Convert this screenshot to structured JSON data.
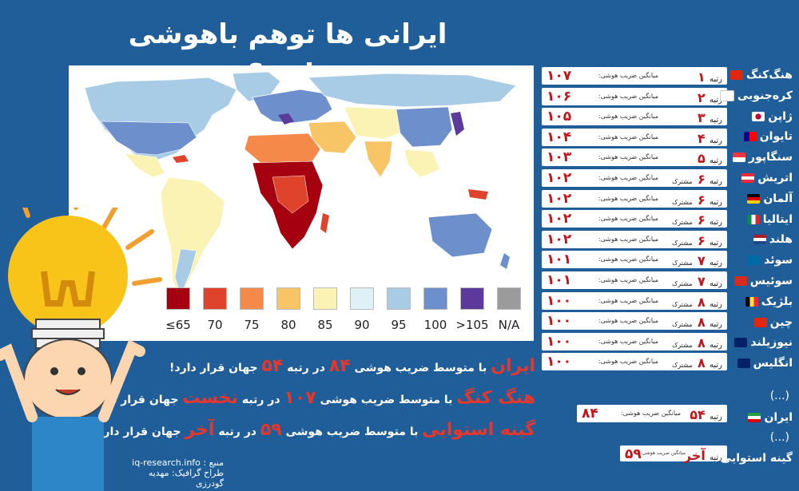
{
  "title": "ایرانی ها توهم باهوشی دارند؟",
  "legend": [
    {
      "label": "≤65",
      "color": "#a5000f"
    },
    {
      "label": "70",
      "color": "#e0432b"
    },
    {
      "label": "75",
      "color": "#f5894a"
    },
    {
      "label": "80",
      "color": "#f8c566"
    },
    {
      "label": "85",
      "color": "#fbf3b4"
    },
    {
      "label": "90",
      "color": "#dff0f6"
    },
    {
      "label": "95",
      "color": "#a8cce6"
    },
    {
      "label": "100",
      "color": "#6d8fcb"
    },
    {
      ">105": "",
      "label": ">105",
      "color": "#5b3a9c"
    },
    {
      "label": "N/A",
      "color": "#9b9b9b"
    }
  ],
  "mean_label": "میانگین ضریب هوشی:",
  "shared_label": "مشترک",
  "rank_word": "رتبه",
  "ranks": [
    {
      "rank": "۱",
      "iq": "۱۰۷",
      "shared": "",
      "country": "هنگ‌کنگ",
      "flag": "hk"
    },
    {
      "rank": "۲",
      "iq": "۱۰۶",
      "shared": "",
      "country": "کره‌جنوبی",
      "flag": "kr"
    },
    {
      "rank": "۳",
      "iq": "۱۰۵",
      "shared": "",
      "country": "ژاپن",
      "flag": "jp"
    },
    {
      "rank": "۴",
      "iq": "۱۰۴",
      "shared": "",
      "country": "تایوان",
      "flag": "tw"
    },
    {
      "rank": "۵",
      "iq": "۱۰۳",
      "shared": "",
      "country": "سنگاپور",
      "flag": "sg"
    },
    {
      "rank": "۶",
      "iq": "۱۰۲",
      "shared": "مشترک",
      "country": "اتریش",
      "flag": "at"
    },
    {
      "rank": "۶",
      "iq": "۱۰۲",
      "shared": "مشترک",
      "country": "آلمان",
      "flag": "de"
    },
    {
      "rank": "۶",
      "iq": "۱۰۲",
      "shared": "مشترک",
      "country": "ایتالیا",
      "flag": "it"
    },
    {
      "rank": "۶",
      "iq": "۱۰۲",
      "shared": "مشترک",
      "country": "هلند",
      "flag": "nl"
    },
    {
      "rank": "۷",
      "iq": "۱۰۱",
      "shared": "مشترک",
      "country": "سوئد",
      "flag": "se"
    },
    {
      "rank": "۷",
      "iq": "۱۰۱",
      "shared": "مشترک",
      "country": "سوئیس",
      "flag": "ch"
    },
    {
      "rank": "۸",
      "iq": "۱۰۰",
      "shared": "مشترک",
      "country": "بلژیک",
      "flag": "be"
    },
    {
      "rank": "۸",
      "iq": "۱۰۰",
      "shared": "مشترک",
      "country": "چین",
      "flag": "cn"
    },
    {
      "rank": "۸",
      "iq": "۱۰۰",
      "shared": "مشترک",
      "country": "نیوزیلند",
      "flag": "nz"
    },
    {
      "rank": "۸",
      "iq": "۱۰۰",
      "shared": "مشترک",
      "country": "انگلیس",
      "flag": "gb"
    }
  ],
  "ellipsis": "(...)",
  "iran_row": {
    "rank": "۵۴",
    "iq": "۸۴",
    "country": "ایران"
  },
  "guinea_row": {
    "rank": "آخر",
    "iq": "۵۹",
    "country": "گینه استوایی"
  },
  "lines": {
    "iran": {
      "name": "ایران",
      "t1": "با متوسط ضریب هوشی",
      "iq": "۸۴",
      "t2": "در رتبه",
      "rank": "۵۴",
      "t3": "جهان قرار دارد!"
    },
    "hk": {
      "name": "هنگ کنگ",
      "t1": "با متوسط ضریب هوشی",
      "iq": "۱۰۷",
      "t2": "در رتبه",
      "rank": "نخست",
      "t3": "جهان قرار دارد!"
    },
    "gq": {
      "name": "گینه استوایی",
      "t1": "با متوسط ضریب هوشی",
      "iq": "۵۹",
      "t2": "در رتبه",
      "rank": "آخر",
      "t3": "جهان قرار دارد!"
    }
  },
  "source": {
    "label": "منبع :",
    "value": "iq-research.info",
    "designer": "طراح گرافیک: مهدیه گودرزی"
  }
}
